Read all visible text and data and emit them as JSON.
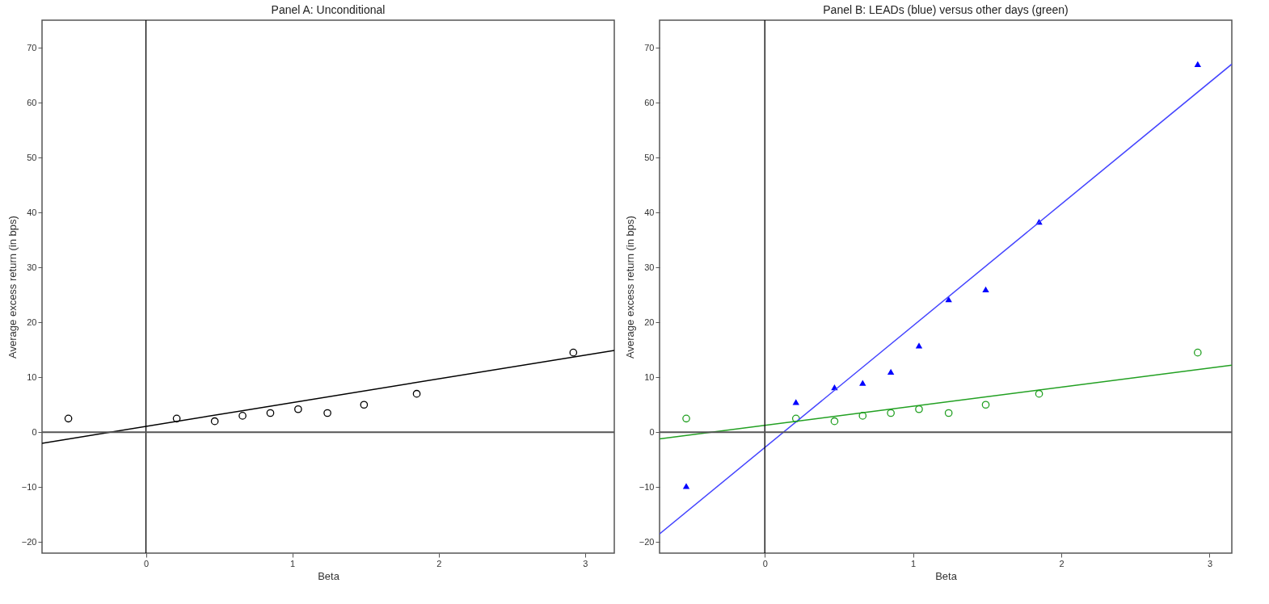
{
  "chart_data": [
    {
      "type": "scatter",
      "title": "Panel A: Unconditional",
      "xlabel": "Beta",
      "ylabel": "Average excess return (in bps)",
      "xlim": [
        -0.71,
        3.2
      ],
      "ylim": [
        -22,
        75
      ],
      "xticks": [
        0,
        1,
        2,
        3
      ],
      "yticks": [
        -20,
        -10,
        0,
        10,
        20,
        30,
        40,
        50,
        60,
        70
      ],
      "grid": false,
      "ref_lines": [
        {
          "axis": "x",
          "value": 0,
          "color": "#000000"
        },
        {
          "axis": "y",
          "value": 0,
          "color": "#555555"
        }
      ],
      "series": [
        {
          "type": "scatter",
          "marker": "circle",
          "color": "#000000",
          "x": [
            -0.53,
            0.21,
            0.47,
            0.66,
            0.85,
            1.04,
            1.24,
            1.49,
            1.85,
            2.92
          ],
          "values": [
            2.5,
            2.5,
            2,
            3,
            3.5,
            4.2,
            3.5,
            5,
            7,
            14.5
          ]
        },
        {
          "type": "line",
          "color": "#000000",
          "x": [
            -0.71,
            3.2
          ],
          "values": [
            -2,
            14.9
          ]
        }
      ]
    },
    {
      "type": "scatter",
      "title": "Panel B: LEADs (blue) versus other days (green)",
      "xlabel": "Beta",
      "ylabel": "Average excess return (in bps)",
      "xlim": [
        -0.71,
        3.15
      ],
      "ylim": [
        -22,
        75
      ],
      "xticks": [
        0,
        1,
        2,
        3
      ],
      "yticks": [
        -20,
        -10,
        0,
        10,
        20,
        30,
        40,
        50,
        60,
        70
      ],
      "grid": false,
      "ref_lines": [
        {
          "axis": "x",
          "value": 0,
          "color": "#000000"
        },
        {
          "axis": "y",
          "value": 0,
          "color": "#555555"
        }
      ],
      "series": [
        {
          "type": "scatter",
          "marker": "triangle",
          "color": "#0000ff",
          "x": [
            -0.53,
            0.21,
            0.47,
            0.66,
            0.85,
            1.04,
            1.24,
            1.49,
            1.85,
            2.92
          ],
          "values": [
            -9.8,
            5.5,
            8.2,
            9,
            11,
            15.8,
            24.2,
            26,
            38.3,
            67
          ]
        },
        {
          "type": "scatter",
          "marker": "circle",
          "color": "#22a022",
          "x": [
            -0.53,
            0.21,
            0.47,
            0.66,
            0.85,
            1.04,
            1.24,
            1.49,
            1.85,
            2.92
          ],
          "values": [
            2.5,
            2.5,
            2,
            3,
            3.5,
            4.2,
            3.5,
            5,
            7,
            14.5
          ]
        },
        {
          "type": "line",
          "color": "#4444ff",
          "x": [
            -0.71,
            3.15
          ],
          "values": [
            -18.5,
            67
          ]
        },
        {
          "type": "line",
          "color": "#22a022",
          "x": [
            -0.71,
            3.15
          ],
          "values": [
            -1.2,
            12.2
          ]
        }
      ]
    }
  ]
}
